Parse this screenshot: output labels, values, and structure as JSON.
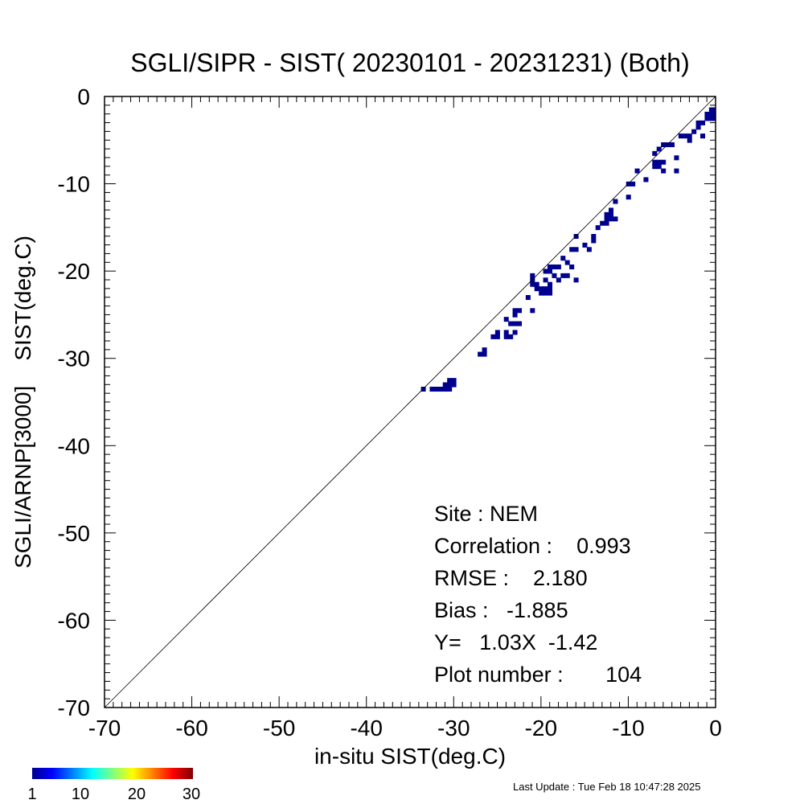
{
  "chart_data": {
    "type": "scatter",
    "title": "SGLI/SIPR - SIST( 20230101 - 20231231) (Both)",
    "xlabel": "in-situ SIST(deg.C)",
    "ylabel": "SGLI/ARNP[3000]    SIST(deg.C)",
    "xlim": [
      -70,
      0
    ],
    "ylim": [
      -70,
      0
    ],
    "xticks": [
      "-70",
      "-60",
      "-50",
      "-40",
      "-30",
      "-20",
      "-10",
      "0"
    ],
    "yticks": [
      "0",
      "-10",
      "-20",
      "-30",
      "-40",
      "-50",
      "-60",
      "-70"
    ],
    "reference_line": "1:1",
    "bin_size": 0.5,
    "marker_color": "#00008f",
    "points": [
      [
        -33.5,
        -33.5
      ],
      [
        -32.5,
        -33.5
      ],
      [
        -32,
        -33.5
      ],
      [
        -31.5,
        -33.5
      ],
      [
        -31,
        -33.5
      ],
      [
        -30.5,
        -33.5
      ],
      [
        -31,
        -33
      ],
      [
        -30.5,
        -33
      ],
      [
        -30,
        -33
      ],
      [
        -30.5,
        -32.5
      ],
      [
        -30,
        -32.5
      ],
      [
        -27,
        -29.5
      ],
      [
        -26.5,
        -29.5
      ],
      [
        -26.5,
        -29
      ],
      [
        -25.5,
        -27.5
      ],
      [
        -25,
        -27.5
      ],
      [
        -25,
        -27
      ],
      [
        -24,
        -27.5
      ],
      [
        -23.5,
        -27.5
      ],
      [
        -24,
        -27
      ],
      [
        -23,
        -27
      ],
      [
        -23.5,
        -26
      ],
      [
        -23,
        -26
      ],
      [
        -22.5,
        -26
      ],
      [
        -24,
        -25.5
      ],
      [
        -23,
        -25
      ],
      [
        -22.5,
        -24.5
      ],
      [
        -23,
        -24.5
      ],
      [
        -21.5,
        -23
      ],
      [
        -21,
        -24.5
      ],
      [
        -21,
        -20.5
      ],
      [
        -21,
        -21
      ],
      [
        -21,
        -21.5
      ],
      [
        -20.5,
        -21.5
      ],
      [
        -20.5,
        -22
      ],
      [
        -20,
        -22
      ],
      [
        -20,
        -22.5
      ],
      [
        -19.5,
        -22.5
      ],
      [
        -19.5,
        -22
      ],
      [
        -19,
        -22
      ],
      [
        -19,
        -22.5
      ],
      [
        -19.5,
        -20
      ],
      [
        -19,
        -20
      ],
      [
        -19,
        -19.5
      ],
      [
        -18.5,
        -19.5
      ],
      [
        -19.5,
        -21
      ],
      [
        -19,
        -21.5
      ],
      [
        -18,
        -21
      ],
      [
        -18.5,
        -20.5
      ],
      [
        -17.5,
        -20.5
      ],
      [
        -17,
        -20.5
      ],
      [
        -18,
        -19.5
      ],
      [
        -17.5,
        -18.5
      ],
      [
        -17,
        -19
      ],
      [
        -16.5,
        -19.5
      ],
      [
        -16,
        -21
      ],
      [
        -16.5,
        -17.5
      ],
      [
        -16,
        -17.5
      ],
      [
        -16,
        -16
      ],
      [
        -15,
        -17
      ],
      [
        -14.5,
        -17.5
      ],
      [
        -14,
        -16.5
      ],
      [
        -14,
        -16
      ],
      [
        -13.5,
        -15
      ],
      [
        -13,
        -14.5
      ],
      [
        -12.5,
        -14
      ],
      [
        -12,
        -14
      ],
      [
        -12.5,
        -13.5
      ],
      [
        -12,
        -13.5
      ],
      [
        -12,
        -13
      ],
      [
        -11.5,
        -14
      ],
      [
        -11.5,
        -12
      ],
      [
        -12.5,
        -14.5
      ],
      [
        -10,
        -10
      ],
      [
        -9.5,
        -10
      ],
      [
        -10,
        -11.5
      ],
      [
        -9,
        -8.5
      ],
      [
        -8,
        -9.5
      ],
      [
        -7,
        -6.5
      ],
      [
        -7,
        -7.5
      ],
      [
        -6.5,
        -7.5
      ],
      [
        -6,
        -7.5
      ],
      [
        -7,
        -8
      ],
      [
        -6.5,
        -8
      ],
      [
        -6,
        -8.5
      ],
      [
        -6.5,
        -6
      ],
      [
        -6,
        -5.5
      ],
      [
        -5.5,
        -5.5
      ],
      [
        -5,
        -5.5
      ],
      [
        -4.5,
        -7
      ],
      [
        -4.5,
        -8.5
      ],
      [
        -4,
        -4.5
      ],
      [
        -3.5,
        -4.5
      ],
      [
        -3,
        -4.5
      ],
      [
        -3,
        -5
      ],
      [
        -2.5,
        -4
      ],
      [
        -2,
        -3.5
      ],
      [
        -1.5,
        -4.5
      ],
      [
        -2,
        -3
      ],
      [
        -1.5,
        -3
      ],
      [
        -1,
        -2.5
      ],
      [
        -1,
        -2
      ],
      [
        -0.5,
        -2
      ],
      [
        -0.5,
        -1.5
      ],
      [
        0,
        -1.5
      ],
      [
        0,
        -2
      ],
      [
        0,
        -2.5
      ],
      [
        -0.5,
        -2.5
      ]
    ]
  },
  "stats": {
    "site": "Site : NEM",
    "correlation": "Correlation :    0.993",
    "rmse": "RMSE :    2.180",
    "bias": "Bias :   -1.885",
    "regression": "Y=   1.03X  -1.42",
    "plot_number": "Plot number :       104"
  },
  "colorbar": {
    "labels": [
      "1",
      "10",
      "20",
      "30"
    ],
    "stops": [
      "#00008f",
      "#0000ff",
      "#0080ff",
      "#00ffff",
      "#80ff80",
      "#ffff00",
      "#ff8000",
      "#ff0000",
      "#800000"
    ]
  },
  "last_update": "Last Update : Tue Feb 18 10:47:28 2025"
}
